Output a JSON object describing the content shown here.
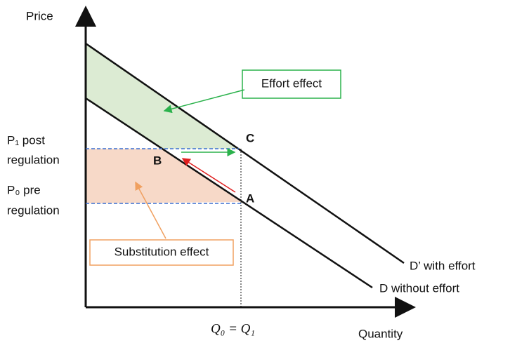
{
  "axes": {
    "y_label": "Price",
    "x_label": "Quantity"
  },
  "price_levels": {
    "p1_line1": "P₁ post",
    "p1_line2": "regulation",
    "p0_line1": "P₀ pre",
    "p0_line2": "regulation"
  },
  "points": {
    "a": "A",
    "b": "B",
    "c": "C"
  },
  "curves": {
    "d_prime": "D’ with effort",
    "d": "D without effort"
  },
  "quantity_label": "Q₀ = Q₁",
  "boxes": {
    "effort": "Effort effect",
    "substitution": "Substitution effect"
  }
}
